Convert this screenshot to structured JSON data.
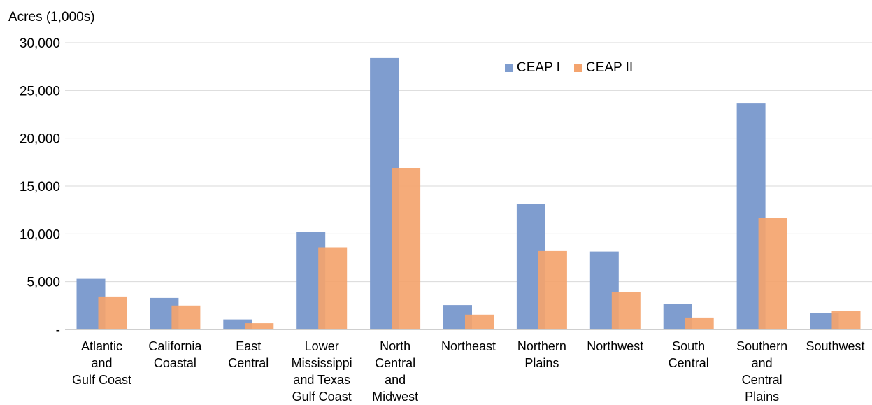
{
  "chart_data": {
    "type": "bar",
    "ylabel": "Acres (1,000s)",
    "ylim": [
      0,
      30000
    ],
    "yticks": [
      {
        "value": 0,
        "label": "-"
      },
      {
        "value": 5000,
        "label": "5,000"
      },
      {
        "value": 10000,
        "label": "10,000"
      },
      {
        "value": 15000,
        "label": "15,000"
      },
      {
        "value": 20000,
        "label": "20,000"
      },
      {
        "value": 25000,
        "label": "25,000"
      },
      {
        "value": 30000,
        "label": "30,000"
      }
    ],
    "categories": [
      "Atlantic\nand\nGulf Coast",
      "California\nCoastal",
      "East\nCentral",
      "Lower\nMississippi\nand Texas\nGulf Coast",
      "North\nCentral\nand\nMidwest",
      "Northeast",
      "Northern\nPlains",
      "Northwest",
      "South\nCentral",
      "Southern\nand\nCentral\nPlains",
      "Southwest"
    ],
    "series": [
      {
        "name": "CEAP I",
        "color": "#7f9dcf",
        "values": [
          5300,
          3300,
          1050,
          10200,
          28400,
          2550,
          13100,
          8150,
          2700,
          23700,
          1700
        ]
      },
      {
        "name": "CEAP II",
        "color": "#f4a46e",
        "values": [
          3450,
          2500,
          650,
          8600,
          16900,
          1550,
          8200,
          3900,
          1250,
          11700,
          1900
        ]
      }
    ],
    "grid": true,
    "legend_position": "top-right"
  }
}
